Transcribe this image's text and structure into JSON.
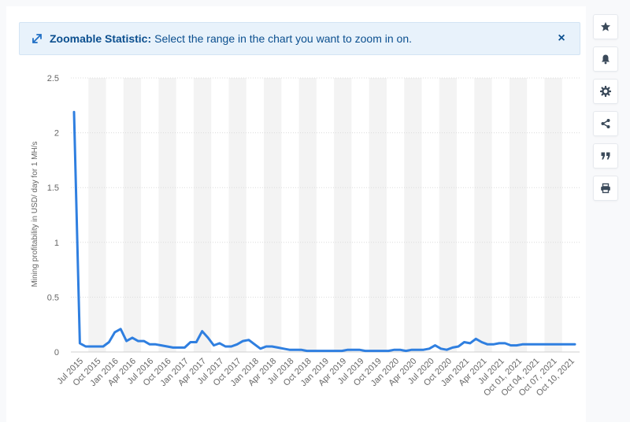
{
  "banner": {
    "title": "Zoomable Statistic:",
    "message": "Select the range in the chart you want to zoom in on.",
    "close_glyph": "×",
    "accent_color": "#0b4f8f"
  },
  "toolbar": {
    "buttons": [
      {
        "name": "star-icon"
      },
      {
        "name": "bell-icon"
      },
      {
        "name": "gear-icon"
      },
      {
        "name": "share-icon"
      },
      {
        "name": "quote-icon"
      },
      {
        "name": "print-icon"
      }
    ],
    "icon_color": "#3b4a5a"
  },
  "chart_data": {
    "type": "line",
    "title": "",
    "xlabel": "",
    "ylabel": "Mining profitability in USD/ day for 1 MH/s",
    "ylim": [
      0,
      2.5
    ],
    "yticks": [
      "0",
      "0.5",
      "1",
      "1.5",
      "2",
      "2.5"
    ],
    "grid": "horizontal dotted, alternating shaded vertical bands",
    "line_color": "#2f7fe0",
    "x_tick_labels": [
      "Jul 2015",
      "Oct 2015",
      "Jan 2016",
      "Apr 2016",
      "Jul 2016",
      "Oct 2016",
      "Jan 2017",
      "Apr 2017",
      "Jul 2017",
      "Oct 2017",
      "Jan 2018",
      "Apr 2018",
      "Jul 2018",
      "Oct 2018",
      "Jan 2019",
      "Apr 2019",
      "Jul 2019",
      "Oct 2019",
      "Jan 2020",
      "Apr 2020",
      "Jul 2020",
      "Oct 2020",
      "Jan 2021",
      "Apr 2021",
      "Jul 2021",
      "Oct 01, 2021",
      "Oct 04, 2021",
      "Oct 07, 2021",
      "Oct 10, 2021"
    ],
    "series": [
      {
        "values": [
          2.19,
          0.08,
          0.05,
          0.05,
          0.05,
          0.05,
          0.09,
          0.18,
          0.21,
          0.1,
          0.13,
          0.1,
          0.1,
          0.07,
          0.07,
          0.06,
          0.05,
          0.04,
          0.04,
          0.04,
          0.09,
          0.09,
          0.19,
          0.13,
          0.06,
          0.08,
          0.05,
          0.05,
          0.07,
          0.1,
          0.11,
          0.07,
          0.03,
          0.05,
          0.05,
          0.04,
          0.03,
          0.02,
          0.02,
          0.02,
          0.01,
          0.01,
          0.01,
          0.01,
          0.01,
          0.01,
          0.01,
          0.02,
          0.02,
          0.02,
          0.01,
          0.01,
          0.01,
          0.01,
          0.01,
          0.02,
          0.02,
          0.01,
          0.02,
          0.02,
          0.02,
          0.03,
          0.06,
          0.03,
          0.02,
          0.04,
          0.05,
          0.09,
          0.08,
          0.12,
          0.09,
          0.07,
          0.07,
          0.08,
          0.08,
          0.06,
          0.06,
          0.07,
          0.07,
          0.07,
          0.07,
          0.07,
          0.07,
          0.07,
          0.07,
          0.07,
          0.07
        ]
      }
    ]
  }
}
